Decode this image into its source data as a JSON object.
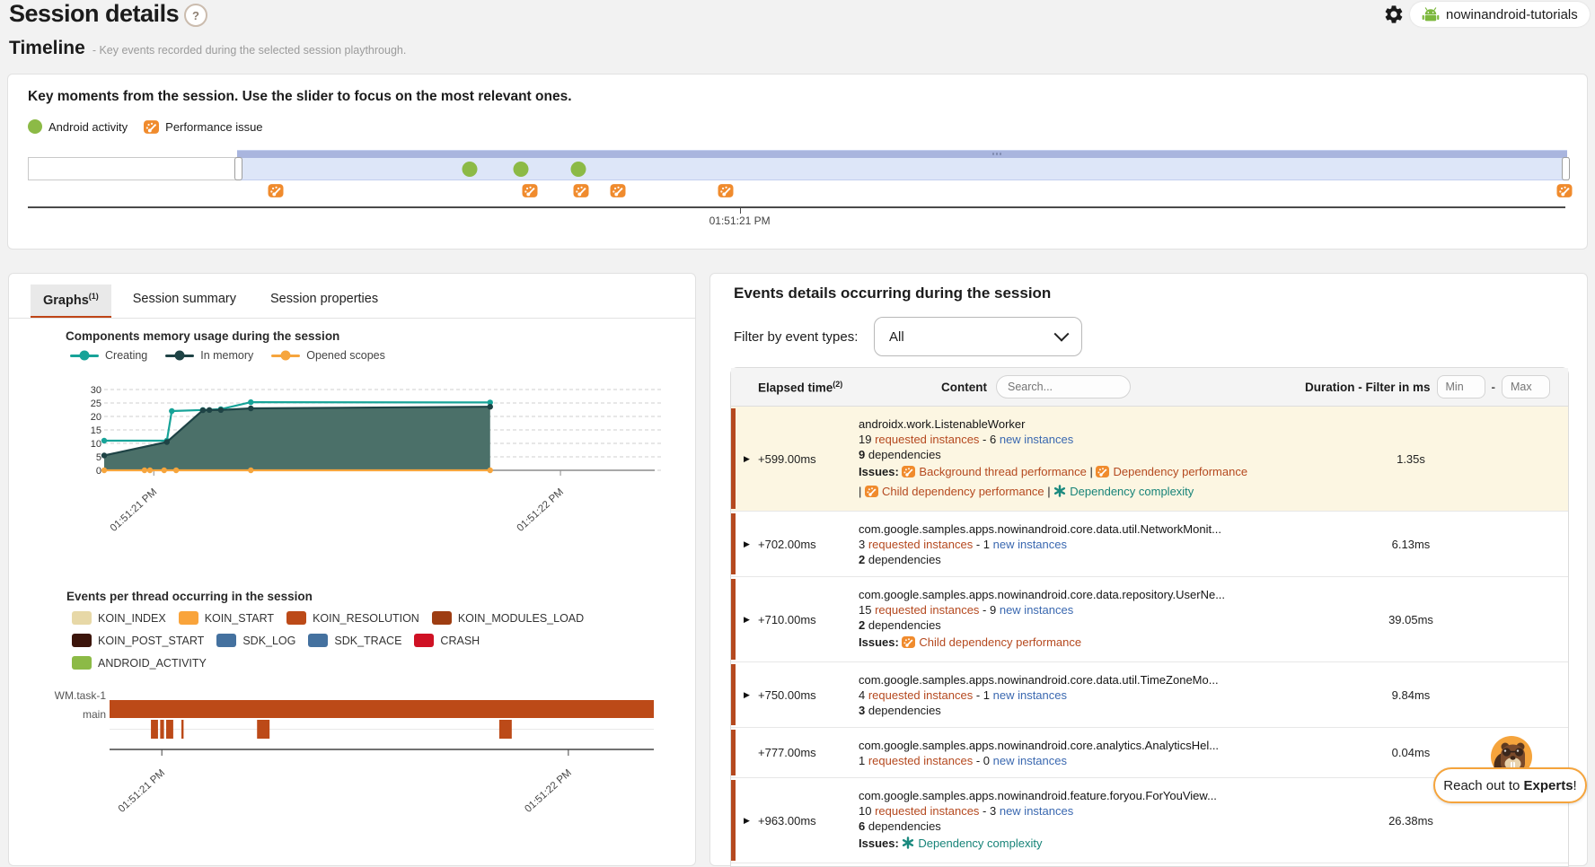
{
  "header": {
    "title": "Session details",
    "help": "?",
    "project": "nowinandroid-tutorials"
  },
  "timeline": {
    "heading": "Timeline",
    "subheading": "- Key events recorded during the selected session playthrough.",
    "card_title": "Key moments from the session. Use the slider to focus on the most relevant ones.",
    "legend": [
      {
        "label": "Android activity",
        "type": "activity",
        "color": "#8cba46"
      },
      {
        "label": "Performance issue",
        "type": "issue",
        "color": "#f08b2d"
      }
    ],
    "slider": {
      "selection_start": 0.136,
      "selection_end": 0.999
    },
    "activity_markers": [
      0.287,
      0.32,
      0.357
    ],
    "issue_markers": [
      0.161,
      0.326,
      0.359,
      0.383,
      0.453,
      0.997
    ],
    "axis": {
      "tick_pos": 0.463,
      "tick_label": "01:51:21 PM"
    }
  },
  "left_panel": {
    "tabs": [
      {
        "label": "Graphs",
        "sup": "(1)",
        "active": true
      },
      {
        "label": "Session summary",
        "sup": "",
        "active": false
      },
      {
        "label": "Session properties",
        "sup": "",
        "active": false
      }
    ]
  },
  "chart_data": [
    {
      "type": "area",
      "title": "Components memory usage during the session",
      "xlabel": "",
      "ylabel": "",
      "ylim": [
        0,
        30
      ],
      "yticks": [
        0,
        5,
        10,
        15,
        20,
        25,
        30
      ],
      "grid": true,
      "legend_position": "top",
      "x_ticks": [
        {
          "pos": 0.091,
          "label": "01:51:21 PM"
        },
        {
          "pos": 0.837,
          "label": "01:51:22 PM"
        }
      ],
      "series": [
        {
          "name": "Creating",
          "color": "#17a398",
          "fill": false,
          "points": [
            [
              0,
              11
            ],
            [
              0.115,
              11
            ],
            [
              0.124,
              22
            ],
            [
              0.181,
              22.4
            ],
            [
              0.214,
              22.7
            ],
            [
              0.269,
              25.3
            ],
            [
              0.708,
              25.2
            ]
          ]
        },
        {
          "name": "In memory",
          "color": "#1e4345",
          "fill": true,
          "fill_color": "#4b7069",
          "points": [
            [
              0,
              5.5
            ],
            [
              0.115,
              10.5
            ],
            [
              0.181,
              22.3
            ],
            [
              0.193,
              22.4
            ],
            [
              0.214,
              22.4
            ],
            [
              0.269,
              23
            ],
            [
              0.708,
              23.6
            ]
          ]
        },
        {
          "name": "Opened scopes",
          "color": "#f6a53d",
          "fill": false,
          "points": [
            [
              0,
              0
            ],
            [
              0.074,
              0
            ],
            [
              0.084,
              0
            ],
            [
              0.11,
              0
            ],
            [
              0.132,
              0
            ],
            [
              0.269,
              0
            ],
            [
              0.708,
              0
            ]
          ]
        }
      ]
    },
    {
      "type": "gantt",
      "title": "Events per thread occurring in the session",
      "legend": [
        {
          "label": "KOIN_INDEX",
          "color": "#e7d8a7"
        },
        {
          "label": "KOIN_START",
          "color": "#f9a43b"
        },
        {
          "label": "KOIN_RESOLUTION",
          "color": "#bc4a18"
        },
        {
          "label": "KOIN_MODULES_LOAD",
          "color": "#9e3d12"
        },
        {
          "label": "KOIN_POST_START",
          "color": "#3c150b"
        },
        {
          "label": "SDK_LOG",
          "color": "#44719f"
        },
        {
          "label": "SDK_TRACE",
          "color": "#44719f"
        },
        {
          "label": "CRASH",
          "color": "#cf1124"
        },
        {
          "label": "ANDROID_ACTIVITY",
          "color": "#8cba46"
        }
      ],
      "rows": [
        {
          "label": "WM.task-1",
          "color": "#bc4a18",
          "segments": [
            [
              0,
              1
            ]
          ]
        },
        {
          "label": "main",
          "color": "#bc4a18",
          "segments": [
            [
              0.076,
              0.089
            ],
            [
              0.093,
              0.1
            ],
            [
              0.104,
              0.117
            ],
            [
              0.132,
              0.136
            ],
            [
              0.271,
              0.294
            ],
            [
              0.716,
              0.739
            ]
          ]
        }
      ],
      "x_ticks": [
        {
          "pos": 0.096,
          "label": "01:51:21 PM"
        },
        {
          "pos": 0.843,
          "label": "01:51:22 PM"
        }
      ]
    }
  ],
  "right_panel": {
    "title": "Events details occurring during the session",
    "filter_label": "Filter by event types:",
    "filter_value": "All",
    "table_header": {
      "elapsed": "Elapsed time",
      "elapsed_sup": "(2)",
      "content": "Content",
      "search_placeholder": "Search...",
      "duration": "Duration - Filter in ms",
      "min_placeholder": "Min",
      "range_separator": "-",
      "max_placeholder": "Max"
    },
    "row_labels": {
      "requested": "requested instances",
      "new": "new instances",
      "deps": "dependencies",
      "issues": "Issues:"
    },
    "rows": [
      {
        "elapsed": "+599.00ms",
        "expander": true,
        "highlight": true,
        "title": "androidx.work.ListenableWorker",
        "requested_count": "19",
        "new_count": "6",
        "deps_count": "9",
        "issues": [
          {
            "kind": "performance",
            "label": "Background thread performance"
          },
          {
            "kind": "performance",
            "label": "Dependency performance"
          },
          {
            "kind": "performance",
            "label": "Child dependency performance"
          },
          {
            "kind": "complexity",
            "label": "Dependency complexity"
          }
        ],
        "duration": "1.35s"
      },
      {
        "elapsed": "+702.00ms",
        "expander": true,
        "highlight": false,
        "title": "com.google.samples.apps.nowinandroid.core.data.util.NetworkMonit...",
        "requested_count": "3",
        "new_count": "1",
        "deps_count": "2",
        "issues": [],
        "duration": "6.13ms"
      },
      {
        "elapsed": "+710.00ms",
        "expander": true,
        "highlight": false,
        "title": "com.google.samples.apps.nowinandroid.core.data.repository.UserNe...",
        "requested_count": "15",
        "new_count": "9",
        "deps_count": "2",
        "issues": [
          {
            "kind": "performance",
            "label": "Child dependency performance"
          }
        ],
        "duration": "39.05ms"
      },
      {
        "elapsed": "+750.00ms",
        "expander": true,
        "highlight": false,
        "title": "com.google.samples.apps.nowinandroid.core.data.util.TimeZoneMo...",
        "requested_count": "4",
        "new_count": "1",
        "deps_count": "3",
        "issues": [],
        "duration": "9.84ms"
      },
      {
        "elapsed": "+777.00ms",
        "expander": false,
        "highlight": false,
        "title": "com.google.samples.apps.nowinandroid.core.analytics.AnalyticsHel...",
        "requested_count": "1",
        "new_count": "0",
        "deps_count": null,
        "issues": [],
        "duration": "0.04ms"
      },
      {
        "elapsed": "+963.00ms",
        "expander": true,
        "highlight": false,
        "title": "com.google.samples.apps.nowinandroid.feature.foryou.ForYouView...",
        "requested_count": "10",
        "new_count": "3",
        "deps_count": "6",
        "issues": [
          {
            "kind": "complexity",
            "label": "Dependency complexity"
          }
        ],
        "duration": "26.38ms"
      }
    ],
    "experts": {
      "prefix": "Reach out to ",
      "bold": "Experts",
      "suffix": "!"
    }
  }
}
